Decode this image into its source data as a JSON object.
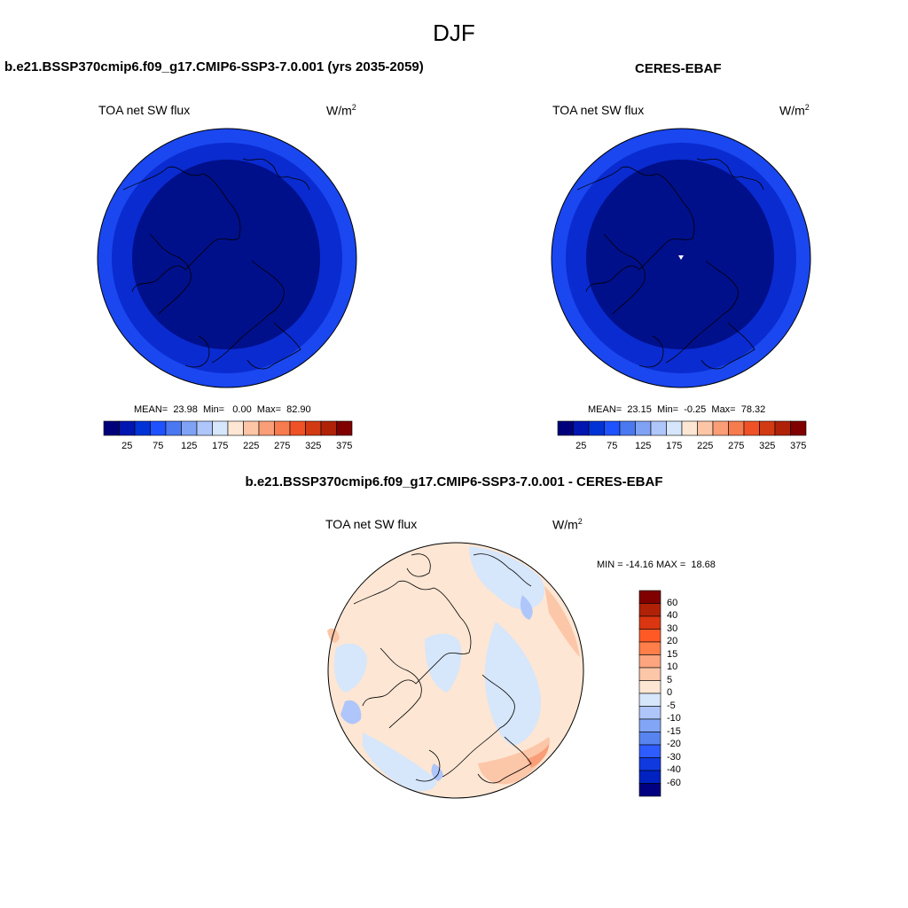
{
  "title": "DJF",
  "panels": {
    "model": {
      "title": "b.e21.BSSP370cmip6.f09_g17.CMIP6-SSP3-7.0.001 (yrs 2035-2059)",
      "variable": "TOA net SW flux",
      "units_base": "W/m",
      "units_exp": "2",
      "stats": "MEAN=  23.98  Min=   0.00  Max=  82.90"
    },
    "obs": {
      "title": "CERES-EBAF",
      "variable": "TOA net SW flux",
      "units_base": "W/m",
      "units_exp": "2",
      "stats": "MEAN=  23.15  Min=  -0.25  Max=  78.32"
    },
    "diff": {
      "title": "b.e21.BSSP370cmip6.f09_g17.CMIP6-SSP3-7.0.001 - CERES-EBAF",
      "variable": "TOA net SW flux",
      "units_base": "W/m",
      "units_exp": "2",
      "stats": "MIN = -14.16 MAX =  18.68"
    }
  },
  "colorbar_main": {
    "colors": [
      "#00007a",
      "#0016b0",
      "#0033d6",
      "#1f52ff",
      "#4a78f0",
      "#7fa2f5",
      "#aec6fa",
      "#d6e6fb",
      "#fde6d3",
      "#fcc6a6",
      "#f99e77",
      "#f67b4f",
      "#ef5226",
      "#d23a14",
      "#b02208",
      "#800000"
    ],
    "labels": [
      "25",
      "75",
      "125",
      "175",
      "225",
      "275",
      "325",
      "375"
    ]
  },
  "colorbar_diff": {
    "colors": [
      "#800000",
      "#b02208",
      "#d93611",
      "#ff5a26",
      "#ff7e4a",
      "#fca57e",
      "#fcc6a8",
      "#fde6d3",
      "#d6e6fb",
      "#aec6fa",
      "#82a6f5",
      "#5884f0",
      "#2e5cff",
      "#103ae0",
      "#0022c0",
      "#000080"
    ],
    "labels": [
      "60",
      "40",
      "30",
      "20",
      "15",
      "10",
      "5",
      "0",
      "-5",
      "-10",
      "-15",
      "-20",
      "-30",
      "-40",
      "-60"
    ]
  },
  "map_colors": {
    "polar_core": "#00108a",
    "mid_ring": "#0a2bd0",
    "outer_ring": "#1a47f0",
    "diff_base": "#fde6d3",
    "diff_neg": "#d6e6fb",
    "diff_neg2": "#aec6fa",
    "diff_pos": "#fcc6a8",
    "diff_pos2": "#f99e77"
  }
}
